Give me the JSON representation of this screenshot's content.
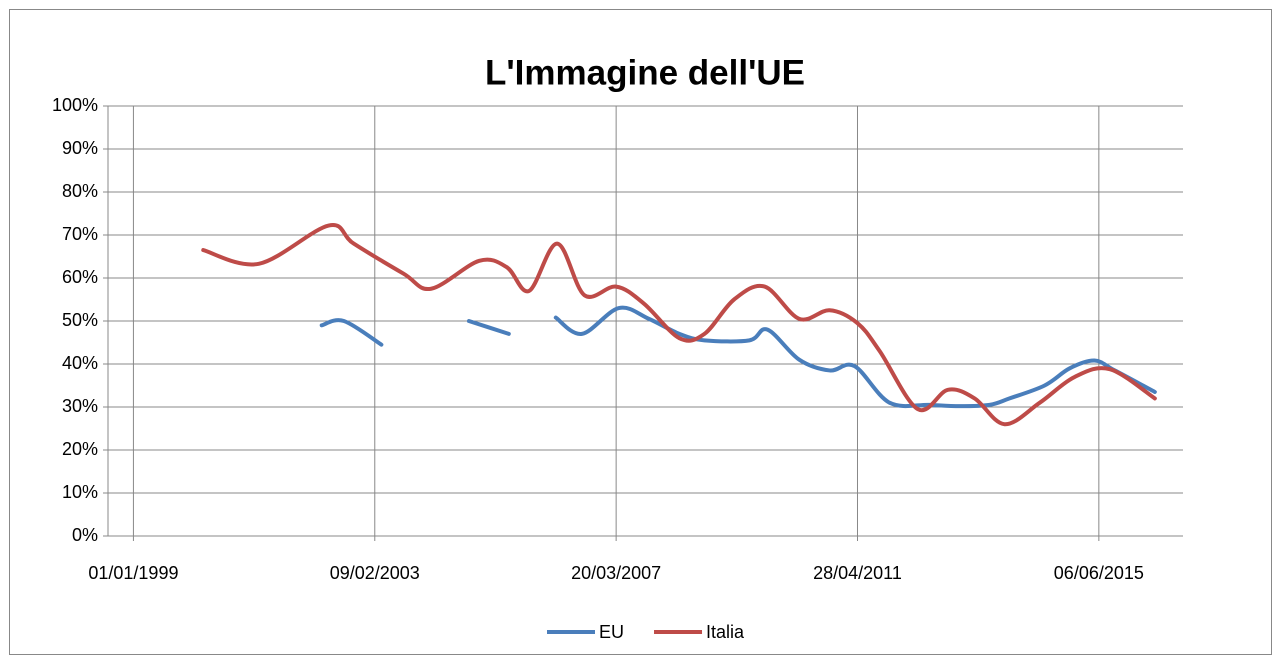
{
  "chart_data": {
    "type": "line",
    "title": "L'Immagine dell'UE",
    "xlim": [
      "1998-07-27",
      "2016-11-10"
    ],
    "xticks": [
      {
        "value": "1999-01-01",
        "label": "01/01/1999"
      },
      {
        "value": "2003-02-09",
        "label": "09/02/2003"
      },
      {
        "value": "2007-03-20",
        "label": "20/03/2007"
      },
      {
        "value": "2011-04-28",
        "label": "28/04/2011"
      },
      {
        "value": "2015-06-06",
        "label": "06/06/2015"
      }
    ],
    "ylim": [
      0,
      100
    ],
    "yticks": [
      {
        "value": 0,
        "label": "0%"
      },
      {
        "value": 10,
        "label": "10%"
      },
      {
        "value": 20,
        "label": "20%"
      },
      {
        "value": 30,
        "label": "30%"
      },
      {
        "value": 40,
        "label": "40%"
      },
      {
        "value": 50,
        "label": "50%"
      },
      {
        "value": 60,
        "label": "60%"
      },
      {
        "value": 70,
        "label": "70%"
      },
      {
        "value": 80,
        "label": "80%"
      },
      {
        "value": 90,
        "label": "90%"
      },
      {
        "value": 100,
        "label": "100%"
      }
    ],
    "grid": true,
    "legend": "bottom",
    "series": [
      {
        "name": "EU",
        "color": "#4a7ebb",
        "x": [
          "2002-03-16",
          "2002-08-01",
          "2003-03-22",
          "2003-12-01",
          "2004-09-16",
          "2005-05-22",
          "2005-10-15",
          "2006-03-10",
          "2006-08-19",
          "2007-04-06",
          "2007-10-10",
          "2008-04-16",
          "2008-09-19",
          "2009-06-25",
          "2009-10-16",
          "2010-05-01",
          "2010-11-06",
          "2011-04-10",
          "2011-11-13",
          "2012-07-19",
          "2013-01-22",
          "2013-07-27",
          "2013-11-28",
          "2014-07-04",
          "2014-12-07",
          "2015-05-10",
          "2015-09-13",
          "2016-05-19"
        ],
        "values": [
          49,
          50,
          44.5,
          null,
          50,
          47,
          null,
          50.8,
          47,
          53,
          50.5,
          47,
          45.5,
          45.5,
          48,
          41,
          38.5,
          39.5,
          31,
          30.5,
          30.2,
          30.5,
          32,
          35,
          39,
          40.8,
          38.5,
          33.5
        ]
      },
      {
        "name": "Italia",
        "color": "#be4b48",
        "x": [
          "2000-03-10",
          "2001-02-18",
          "2002-04-28",
          "2002-10-01",
          "2003-08-07",
          "2004-01-25",
          "2004-11-19",
          "2005-05-10",
          "2005-09-25",
          "2006-03-19",
          "2006-09-04",
          "2007-03-20",
          "2007-09-10",
          "2008-04-16",
          "2008-09-19",
          "2009-03-22",
          "2009-09-28",
          "2010-05-01",
          "2010-11-06",
          "2011-04-28",
          "2011-09-13",
          "2012-05-07",
          "2012-11-10",
          "2013-04-25",
          "2013-10-28",
          "2014-06-04",
          "2015-01-07",
          "2015-08-13",
          "2016-05-19"
        ],
        "values": [
          66.5,
          63.3,
          72.2,
          68,
          61,
          57.5,
          64,
          62.5,
          57,
          68,
          56,
          58,
          54,
          46,
          47,
          55,
          58,
          50.5,
          52.5,
          49.5,
          43,
          29.5,
          34,
          32,
          26,
          31,
          37,
          38.8,
          32
        ]
      }
    ]
  }
}
